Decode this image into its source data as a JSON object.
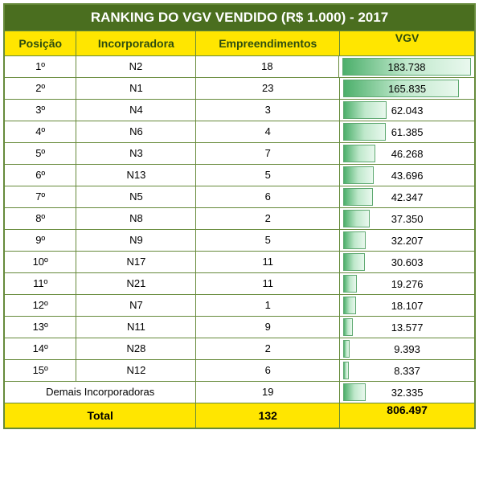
{
  "title": "RANKING DO VGV VENDIDO (R$ 1.000) - 2017",
  "headers": {
    "pos": "Posição",
    "inc": "Incorporadora",
    "emp": "Empreendimentos",
    "vgv": "VGV"
  },
  "max_vgv": 183738,
  "bar_gradient_from": "#4caf6b",
  "bar_gradient_to": "#e9f8ee",
  "header_bg": "#ffe600",
  "title_bg": "#4a6e1f",
  "border_color": "#668a3a",
  "rows": [
    {
      "pos": "1º",
      "inc": "N2",
      "emp": "18",
      "vgv_label": "183.738",
      "vgv_value": 183738
    },
    {
      "pos": "2º",
      "inc": "N1",
      "emp": "23",
      "vgv_label": "165.835",
      "vgv_value": 165835
    },
    {
      "pos": "3º",
      "inc": "N4",
      "emp": "3",
      "vgv_label": "62.043",
      "vgv_value": 62043
    },
    {
      "pos": "4º",
      "inc": "N6",
      "emp": "4",
      "vgv_label": "61.385",
      "vgv_value": 61385
    },
    {
      "pos": "5º",
      "inc": "N3",
      "emp": "7",
      "vgv_label": "46.268",
      "vgv_value": 46268
    },
    {
      "pos": "6º",
      "inc": "N13",
      "emp": "5",
      "vgv_label": "43.696",
      "vgv_value": 43696
    },
    {
      "pos": "7º",
      "inc": "N5",
      "emp": "6",
      "vgv_label": "42.347",
      "vgv_value": 42347
    },
    {
      "pos": "8º",
      "inc": "N8",
      "emp": "2",
      "vgv_label": "37.350",
      "vgv_value": 37350
    },
    {
      "pos": "9º",
      "inc": "N9",
      "emp": "5",
      "vgv_label": "32.207",
      "vgv_value": 32207
    },
    {
      "pos": "10º",
      "inc": "N17",
      "emp": "11",
      "vgv_label": "30.603",
      "vgv_value": 30603
    },
    {
      "pos": "11º",
      "inc": "N21",
      "emp": "11",
      "vgv_label": "19.276",
      "vgv_value": 19276
    },
    {
      "pos": "12º",
      "inc": "N7",
      "emp": "1",
      "vgv_label": "18.107",
      "vgv_value": 18107
    },
    {
      "pos": "13º",
      "inc": "N11",
      "emp": "9",
      "vgv_label": "13.577",
      "vgv_value": 13577
    },
    {
      "pos": "14º",
      "inc": "N28",
      "emp": "2",
      "vgv_label": "9.393",
      "vgv_value": 9393
    },
    {
      "pos": "15º",
      "inc": "N12",
      "emp": "6",
      "vgv_label": "8.337",
      "vgv_value": 8337
    }
  ],
  "demais": {
    "label": "Demais Incorporadoras",
    "emp": "19",
    "vgv_label": "32.335",
    "vgv_value": 32335
  },
  "total": {
    "label": "Total",
    "emp": "132",
    "vgv_label": "806.497"
  }
}
